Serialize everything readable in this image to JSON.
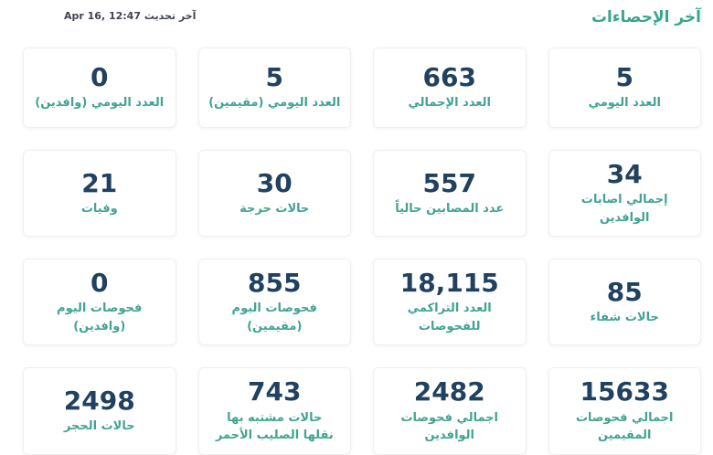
{
  "header": {
    "title": "آخر الإحصاءات",
    "last_updated": "آخر تحديث Apr 16, 12:47"
  },
  "colors": {
    "background": "#ffffff",
    "title_color": "#36a78d",
    "label_color": "#41a392",
    "value_color": "#20415f",
    "updated_color": "#3f4450",
    "card_border": "#efefef"
  },
  "cards": [
    {
      "value": "5",
      "label": "العدد اليومي"
    },
    {
      "value": "663",
      "label": "العدد الإجمالي"
    },
    {
      "value": "5",
      "label": "العدد اليومي (مقيمين)"
    },
    {
      "value": "0",
      "label": "العدد اليومي (وافدين)"
    },
    {
      "value": "34",
      "label": "إجمالي اصابات الوافدين"
    },
    {
      "value": "557",
      "label": "عدد المصابين حالياً"
    },
    {
      "value": "30",
      "label": "حالات حرجة"
    },
    {
      "value": "21",
      "label": "وفيات"
    },
    {
      "value": "85",
      "label": "حالات شفاء"
    },
    {
      "value": "18,115",
      "label": "العدد التراكمي للفحوصات"
    },
    {
      "value": "855",
      "label": "فحوصات اليوم (مقيمين)"
    },
    {
      "value": "0",
      "label": "فحوصات اليوم (وافدين)"
    },
    {
      "value": "15633",
      "label": "اجمالي فحوصات المقيمين"
    },
    {
      "value": "2482",
      "label": "اجمالي فحوصات الوافدين"
    },
    {
      "value": "743",
      "label": "حالات مشتبه بها\nنقلها الصليب الأحمر"
    },
    {
      "value": "2498",
      "label": "حالات الحجر"
    }
  ]
}
